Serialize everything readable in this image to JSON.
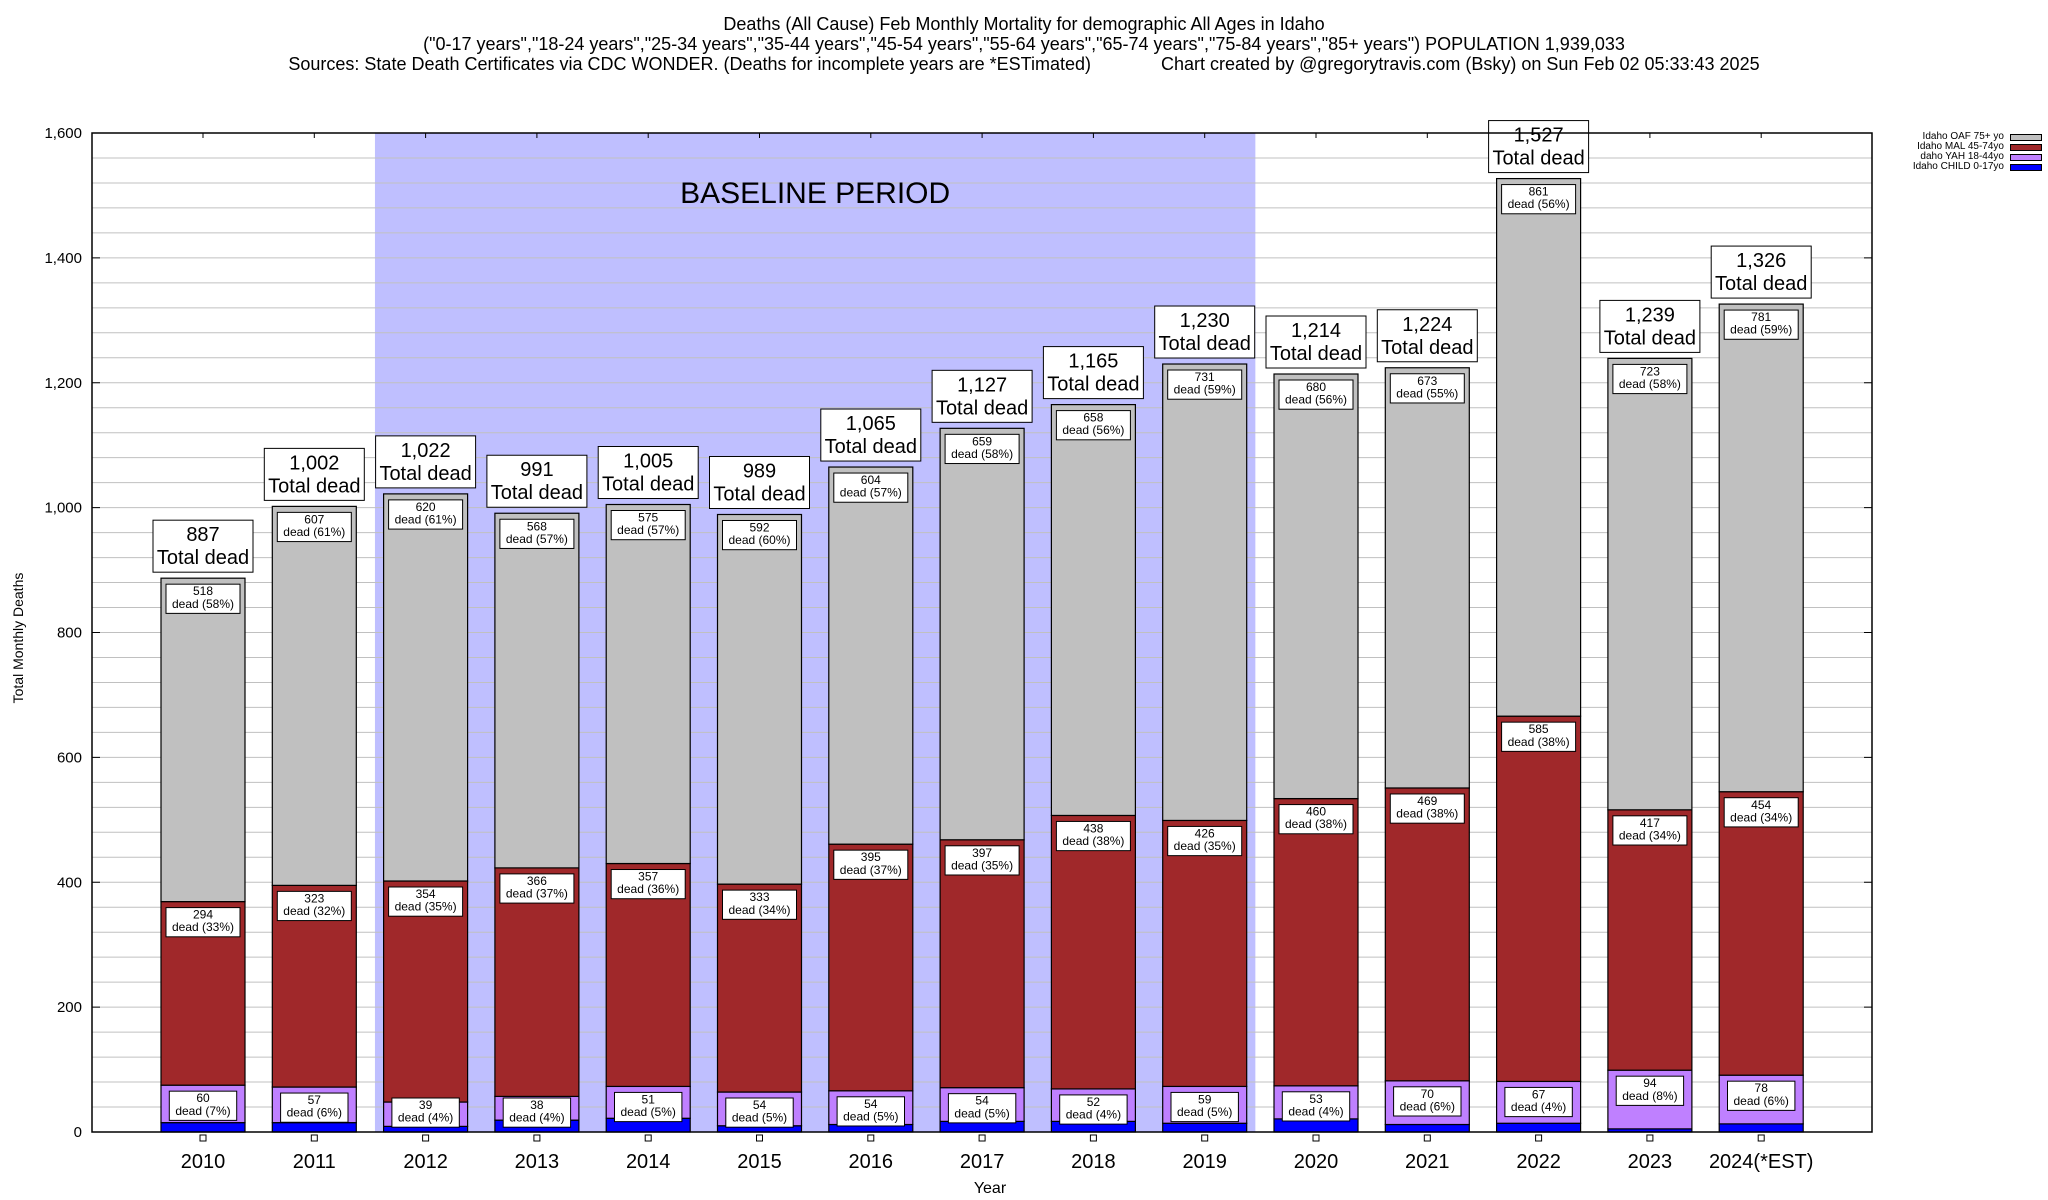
{
  "titles": {
    "line1": "Deaths (All Cause) Feb Monthly Mortality for demographic All Ages in Idaho",
    "line2": "(\"0-17 years\",\"18-24 years\",\"25-34 years\",\"35-44 years\",\"45-54 years\",\"55-64 years\",\"65-74 years\",\"75-84 years\",\"85+ years\") POPULATION 1,939,033",
    "line3": "Sources: State Death Certificates via CDC WONDER. (Deaths for incomplete years are *ESTimated)              Chart created by @gregorytravis.com (Bsky) on Sun Feb 02 05:33:43 2025"
  },
  "chart_data": {
    "type": "bar",
    "stacked": true,
    "title": "Deaths (All Cause) Feb Monthly Mortality for demographic All Ages in Idaho",
    "xlabel": "Year",
    "ylabel": "Total Monthly Deaths",
    "ylim": [
      0,
      1600
    ],
    "yticks": [
      0,
      200,
      400,
      600,
      800,
      1000,
      1200,
      1400,
      1600
    ],
    "ytick_labels": [
      "0",
      "200",
      "400",
      "600",
      "800",
      "1,000",
      "1,200",
      "1,400",
      "1,600"
    ],
    "minor_grid_step": 40,
    "grid": true,
    "legend_position": "top-right",
    "categories": [
      "2010",
      "2011",
      "2012",
      "2013",
      "2014",
      "2015",
      "2016",
      "2017",
      "2018",
      "2019",
      "2020",
      "2021",
      "2022",
      "2023",
      "2024(*EST)"
    ],
    "annotation": {
      "text": "BASELINE PERIOD",
      "from_category": "2012",
      "to_category": "2019",
      "color": "#bfbfff"
    },
    "series": [
      {
        "name": "Idaho CHILD 0-17yo",
        "color": "#0000ff",
        "values": [
          15,
          15,
          9,
          19,
          22,
          10,
          12,
          17,
          17,
          14,
          21,
          12,
          14,
          5,
          13
        ],
        "labeled": false
      },
      {
        "name": "daho YAH 18-44yo",
        "color": "#bf80ff",
        "values": [
          60,
          57,
          39,
          38,
          51,
          54,
          54,
          54,
          52,
          59,
          53,
          70,
          67,
          94,
          78
        ],
        "labels": [
          "60\ndead (7%)",
          "57\ndead (6%)",
          "39\ndead (4%)",
          "38\ndead (4%)",
          "51\ndead (5%)",
          "54\ndead (5%)",
          "54\ndead (5%)",
          "54\ndead (5%)",
          "52\ndead (4%)",
          "59\ndead (5%)",
          "53\ndead (4%)",
          "70\ndead (6%)",
          "67\ndead (4%)",
          "94\ndead (8%)",
          "78\ndead (6%)"
        ]
      },
      {
        "name": "Idaho MAL 45-74yo",
        "color": "#a0282a",
        "values": [
          294,
          323,
          354,
          366,
          357,
          333,
          395,
          397,
          438,
          426,
          460,
          469,
          585,
          417,
          454
        ],
        "labels": [
          "294\ndead (33%)",
          "323\ndead (32%)",
          "354\ndead (35%)",
          "366\ndead (37%)",
          "357\ndead (36%)",
          "333\ndead (34%)",
          "395\ndead (37%)",
          "397\ndead (35%)",
          "438\ndead (38%)",
          "426\ndead (35%)",
          "460\ndead (38%)",
          "469\ndead (38%)",
          "585\ndead (38%)",
          "417\ndead (34%)",
          "454\ndead (34%)"
        ]
      },
      {
        "name": "Idaho OAF 75+ yo",
        "color": "#c0c0c0",
        "values": [
          518,
          607,
          620,
          568,
          575,
          592,
          604,
          659,
          658,
          731,
          680,
          673,
          861,
          723,
          781
        ],
        "labels": [
          "518\ndead (58%)",
          "607\ndead (61%)",
          "620\ndead (61%)",
          "568\ndead (57%)",
          "575\ndead (57%)",
          "592\ndead (60%)",
          "604\ndead (57%)",
          "659\ndead (58%)",
          "658\ndead (56%)",
          "731\ndead (59%)",
          "680\ndead (56%)",
          "673\ndead (55%)",
          "861\ndead (56%)",
          "723\ndead (58%)",
          "781\ndead (59%)"
        ]
      }
    ],
    "totals": [
      887,
      1002,
      1022,
      991,
      1005,
      989,
      1065,
      1127,
      1165,
      1230,
      1214,
      1224,
      1527,
      1239,
      1326
    ],
    "total_labels": [
      "887\nTotal dead",
      "1,002\nTotal dead",
      "1,022\nTotal dead",
      "991\nTotal dead",
      "1,005\nTotal dead",
      "989\nTotal dead",
      "1,065\nTotal dead",
      "1,127\nTotal dead",
      "1,165\nTotal dead",
      "1,230\nTotal dead",
      "1,214\nTotal dead",
      "1,224\nTotal dead",
      "1,527\nTotal dead",
      "1,239\nTotal dead",
      "1,326\nTotal dead"
    ]
  },
  "legend": {
    "items": [
      {
        "label": "Idaho OAF 75+ yo",
        "color": "#c0c0c0"
      },
      {
        "label": "Idaho MAL 45-74yo",
        "color": "#a0282a"
      },
      {
        "label": "daho YAH 18-44yo",
        "color": "#bf80ff"
      },
      {
        "label": "Idaho CHILD 0-17yo",
        "color": "#0000ff"
      }
    ]
  }
}
